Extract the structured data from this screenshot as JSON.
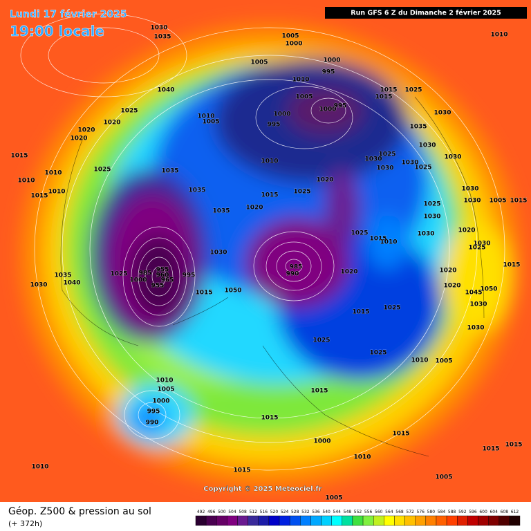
{
  "header": {
    "date": "Lundi 17 février 2025",
    "time": "19:00 locale",
    "run": "Run GFS 6 Z du Dimanche 2 février 2025"
  },
  "copyright": "Copyright © 2025 Meteociel.fr",
  "footer": {
    "title": "Géop. Z500 & pression au sol",
    "lead": "(+ 372h)"
  },
  "legend": {
    "ticks": [
      492,
      496,
      500,
      504,
      508,
      512,
      516,
      520,
      524,
      528,
      532,
      536,
      540,
      544,
      548,
      552,
      556,
      560,
      564,
      568,
      572,
      576,
      580,
      584,
      588,
      592,
      596,
      600,
      604,
      608,
      612
    ],
    "colors": [
      "#2a0030",
      "#4a0050",
      "#660066",
      "#800080",
      "#6a1a90",
      "#3a2a9a",
      "#1c1ca8",
      "#0000c8",
      "#0020e0",
      "#0050f0",
      "#0080ff",
      "#00a8ff",
      "#00d0ff",
      "#00ffff",
      "#00e0a0",
      "#40e040",
      "#80f040",
      "#c0f020",
      "#ffff00",
      "#ffe000",
      "#ffc000",
      "#ffa000",
      "#ff8000",
      "#ff6000",
      "#ff4000",
      "#e02000",
      "#c00000",
      "#a00000",
      "#800000",
      "#500000",
      "#200000"
    ]
  },
  "pressure_labels": [
    1030,
    1035,
    1005,
    1000,
    1010,
    1005,
    1000,
    995,
    1010,
    1015,
    1025,
    1040,
    1005,
    1015,
    995,
    1000,
    1000,
    1025,
    1020,
    1010,
    1005,
    1030,
    995,
    1035,
    1020,
    1020,
    1030,
    1025,
    1030,
    1030,
    1030,
    1025,
    1030,
    1010,
    1025,
    1035,
    1015,
    1010,
    1010,
    1020,
    1030,
    1015,
    1010,
    1035,
    1015,
    1025,
    1030,
    1025,
    1020,
    1035,
    1005,
    1015,
    1030,
    1025,
    1015,
    1010,
    1030,
    1020,
    1030,
    1025,
    1030,
    985,
    955,
    985,
    1000,
    990,
    1025,
    960,
    995,
    1035,
    1020,
    1020,
    1015,
    1040,
    965,
    955,
    1030,
    1020,
    1050,
    1045,
    1050,
    1015,
    1030,
    1025,
    1015,
    1030,
    1025,
    1025,
    1010,
    1005,
    1010,
    1005,
    1015,
    1000,
    995,
    1015,
    990,
    1015,
    1000,
    1010,
    1015,
    1015,
    1010,
    1015,
    1005,
    1005
  ]
}
